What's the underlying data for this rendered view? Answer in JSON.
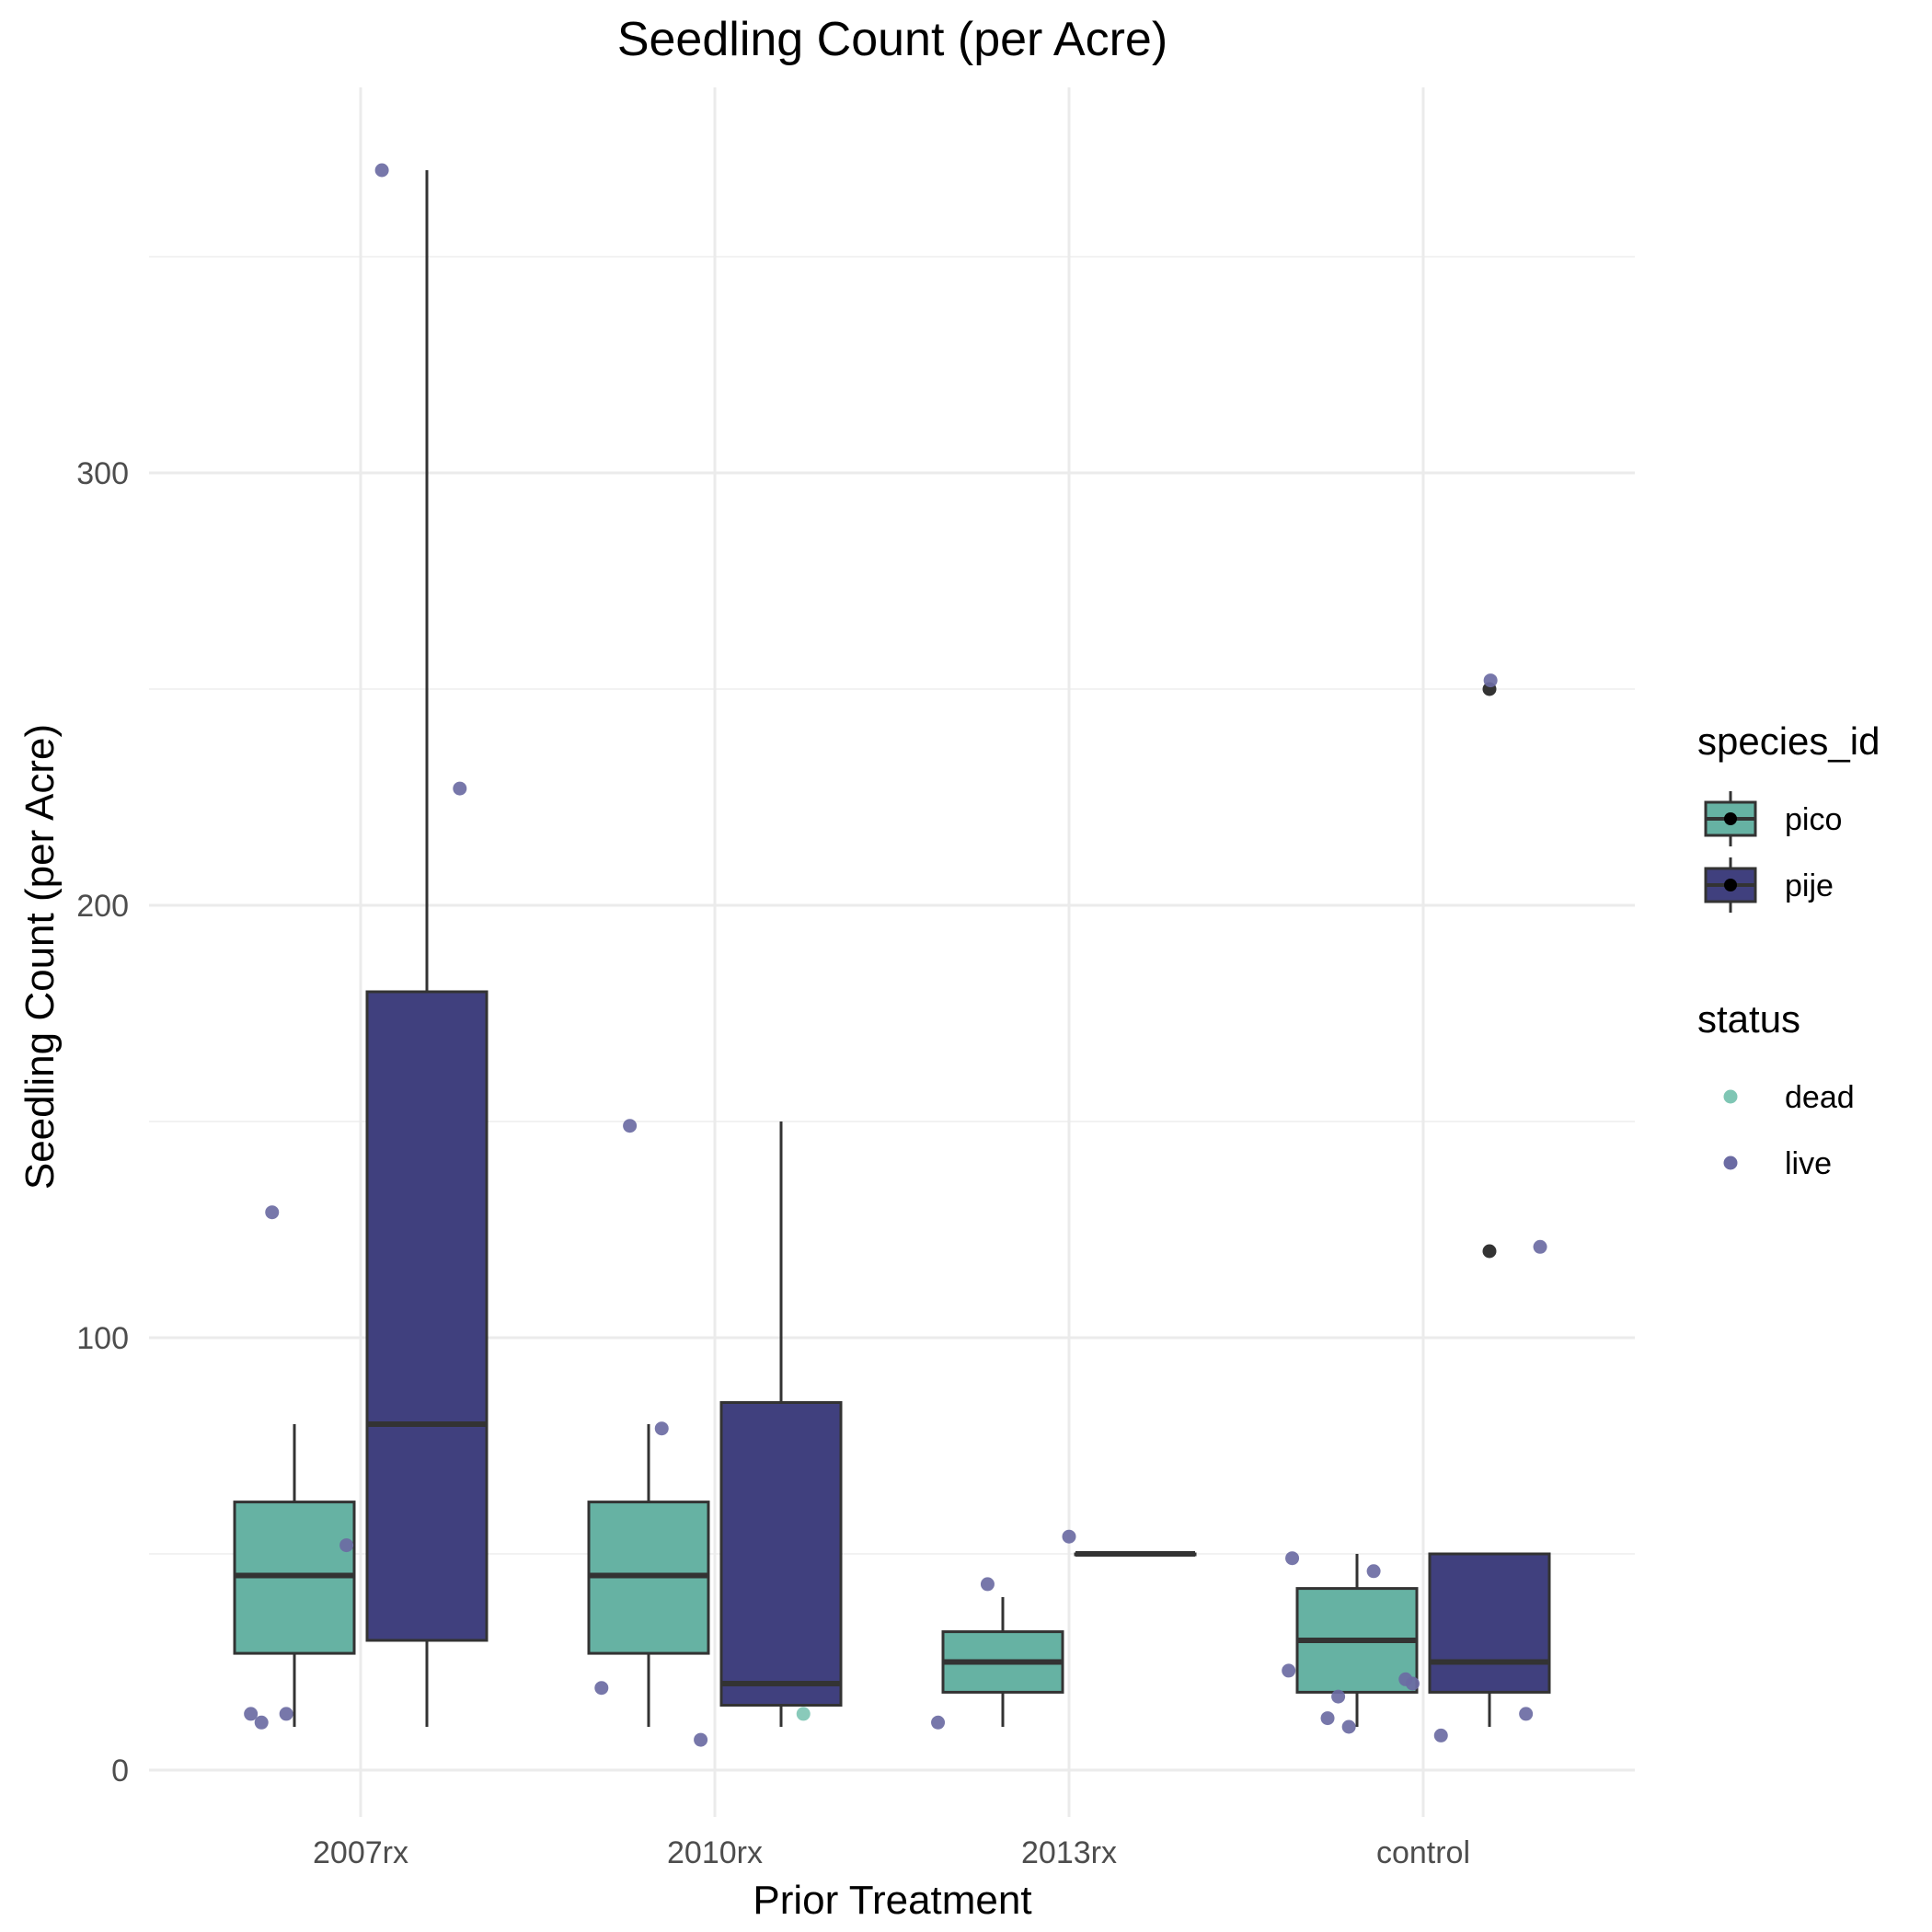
{
  "chart_data": {
    "type": "box",
    "title": "Seedling Count (per Acre)",
    "xlabel": "Prior Treatment",
    "ylabel": "Seedling Count (per Acre)",
    "categories": [
      "2007rx",
      "2010rx",
      "2013rx",
      "control"
    ],
    "ylim": [
      -10,
      385
    ],
    "yticks": [
      0,
      100,
      200,
      300
    ],
    "grid": true,
    "legends": [
      {
        "title": "species_id",
        "items": [
          {
            "key": "pico",
            "label": "pico",
            "color": "#66b2a3"
          },
          {
            "key": "pije",
            "label": "pije",
            "color": "#40407e"
          }
        ]
      },
      {
        "title": "status",
        "items": [
          {
            "key": "dead",
            "label": "dead",
            "color": "#7fc6b4"
          },
          {
            "key": "live",
            "label": "live",
            "color": "#6b6ba3"
          }
        ]
      }
    ],
    "legend_position": "right",
    "boxes": [
      {
        "category": "2007rx",
        "species": "pico",
        "min": 10,
        "q1": 27,
        "median": 45,
        "q3": 62,
        "max": 80,
        "outliers": []
      },
      {
        "category": "2007rx",
        "species": "pije",
        "min": 10,
        "q1": 30,
        "median": 80,
        "q3": 180,
        "max": 370,
        "outliers": []
      },
      {
        "category": "2010rx",
        "species": "pico",
        "min": 10,
        "q1": 27,
        "median": 45,
        "q3": 62,
        "max": 80,
        "outliers": []
      },
      {
        "category": "2010rx",
        "species": "pije",
        "min": 10,
        "q1": 15,
        "median": 20,
        "q3": 85,
        "max": 150,
        "outliers": []
      },
      {
        "category": "2013rx",
        "species": "pico",
        "min": 10,
        "q1": 18,
        "median": 25,
        "q3": 32,
        "max": 40,
        "outliers": []
      },
      {
        "category": "2013rx",
        "species": "pije",
        "min": 50,
        "q1": 50,
        "median": 50,
        "q3": 50,
        "max": 50,
        "outliers": []
      },
      {
        "category": "control",
        "species": "pico",
        "min": 10,
        "q1": 18,
        "median": 30,
        "q3": 42,
        "max": 50,
        "outliers": []
      },
      {
        "category": "control",
        "species": "pije",
        "min": 10,
        "q1": 18,
        "median": 25,
        "q3": 50,
        "max": 50,
        "outliers": [
          120,
          250
        ]
      }
    ],
    "points": [
      {
        "category": "2007rx",
        "x": 0.69,
        "y": 13,
        "status": "live"
      },
      {
        "category": "2007rx",
        "x": 0.72,
        "y": 11,
        "status": "live"
      },
      {
        "category": "2007rx",
        "x": 0.75,
        "y": 129,
        "status": "live"
      },
      {
        "category": "2007rx",
        "x": 0.79,
        "y": 13,
        "status": "live"
      },
      {
        "category": "2007rx",
        "x": 0.96,
        "y": 52,
        "status": "live"
      },
      {
        "category": "2007rx",
        "x": 1.06,
        "y": 370,
        "status": "live"
      },
      {
        "category": "2007rx",
        "x": 1.28,
        "y": 227,
        "status": "live"
      },
      {
        "category": "2010rx",
        "x": 1.68,
        "y": 19,
        "status": "live"
      },
      {
        "category": "2010rx",
        "x": 1.76,
        "y": 149,
        "status": "live"
      },
      {
        "category": "2010rx",
        "x": 1.85,
        "y": 79,
        "status": "live"
      },
      {
        "category": "2010rx",
        "x": 1.96,
        "y": 7,
        "status": "live"
      },
      {
        "category": "2010rx",
        "x": 2.25,
        "y": 13,
        "status": "dead"
      },
      {
        "category": "2013rx",
        "x": 2.63,
        "y": 11,
        "status": "live"
      },
      {
        "category": "2013rx",
        "x": 2.77,
        "y": 43,
        "status": "live"
      },
      {
        "category": "2013rx",
        "x": 3.0,
        "y": 54,
        "status": "live"
      },
      {
        "category": "control",
        "x": 3.62,
        "y": 23,
        "status": "live"
      },
      {
        "category": "control",
        "x": 3.63,
        "y": 49,
        "status": "live"
      },
      {
        "category": "control",
        "x": 3.73,
        "y": 12,
        "status": "live"
      },
      {
        "category": "control",
        "x": 3.76,
        "y": 17,
        "status": "live"
      },
      {
        "category": "control",
        "x": 3.79,
        "y": 10,
        "status": "live"
      },
      {
        "category": "control",
        "x": 3.86,
        "y": 46,
        "status": "live"
      },
      {
        "category": "control",
        "x": 3.95,
        "y": 21,
        "status": "live"
      },
      {
        "category": "control",
        "x": 3.97,
        "y": 20,
        "status": "live"
      },
      {
        "category": "control",
        "x": 4.05,
        "y": 8,
        "status": "live"
      },
      {
        "category": "control",
        "x": 4.19,
        "y": 252,
        "status": "live"
      },
      {
        "category": "control",
        "x": 4.29,
        "y": 13,
        "status": "live"
      },
      {
        "category": "control",
        "x": 4.33,
        "y": 121,
        "status": "live"
      }
    ]
  }
}
